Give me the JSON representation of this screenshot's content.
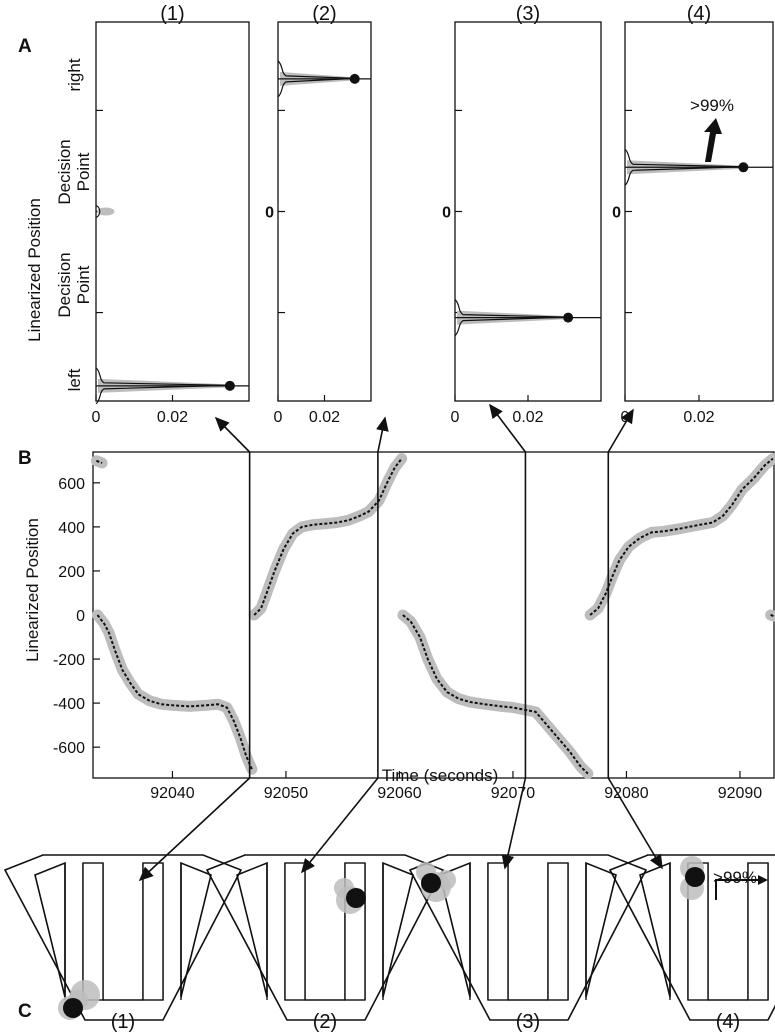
{
  "panel_letters": {
    "a": "A",
    "b": "B",
    "c": "C"
  },
  "chart_data": [
    {
      "type": "line",
      "panel": "A",
      "subplots": [
        {
          "title": "(1)",
          "xticks": [
            "0",
            "0.02"
          ],
          "yticks": [],
          "peak_position": -690,
          "peak_value": 0.035,
          "secondary_bump": {
            "position": 0,
            "value": 0.003
          }
        },
        {
          "title": "(2)",
          "xticks": [
            "0",
            "0.02"
          ],
          "yticks": [
            "0"
          ],
          "peak_position": 525,
          "peak_value": 0.033
        },
        {
          "title": "(3)",
          "xticks": [
            "0",
            "0.02"
          ],
          "yticks": [
            "0"
          ],
          "peak_position": -420,
          "peak_value": 0.031
        },
        {
          "title": "(4)",
          "xticks": [
            "0",
            "0.02"
          ],
          "yticks": [
            "0"
          ],
          "peak_position": 175,
          "peak_value": 0.032,
          "annotation": ">99%"
        }
      ],
      "ylabel": "Linearized Position",
      "ytick_labels": [
        "right",
        "Decision\nPoint",
        "Decision\nPoint",
        "left"
      ],
      "xlim": [
        0,
        0.04
      ],
      "ylim": [
        -750,
        750
      ]
    },
    {
      "type": "scatter",
      "panel": "B",
      "xlabel": "Time (seconds)",
      "ylabel": "Linearized Position",
      "xticks": [
        92040,
        92050,
        92060,
        92070,
        92080,
        92090
      ],
      "yticks": [
        600,
        400,
        200,
        0,
        -200,
        -400,
        -600
      ],
      "xlim": [
        92033,
        92093
      ],
      "ylim": [
        -740,
        740
      ],
      "markers_at_time": [
        92046.8,
        92058.1,
        92071.1,
        92078.4
      ],
      "segments": [
        {
          "name": "",
          "points": [
            [
              92033.3,
              700
            ],
            [
              92033.8,
              690
            ]
          ]
        },
        {
          "points": [
            [
              92033.4,
              0
            ],
            [
              92034.0,
              -40
            ],
            [
              92034.4,
              -80
            ],
            [
              92035.0,
              -170
            ],
            [
              92035.6,
              -250
            ],
            [
              92036.3,
              -310
            ],
            [
              92037.0,
              -360
            ],
            [
              92038.0,
              -390
            ],
            [
              92039.0,
              -405
            ],
            [
              92040.0,
              -410
            ],
            [
              92041.5,
              -415
            ],
            [
              92043.0,
              -410
            ],
            [
              92044.0,
              -405
            ],
            [
              92044.8,
              -420
            ],
            [
              92045.4,
              -480
            ],
            [
              92046.0,
              -560
            ],
            [
              92046.5,
              -640
            ],
            [
              92047.0,
              -700
            ]
          ]
        },
        {
          "points": [
            [
              92047.2,
              0
            ],
            [
              92047.8,
              30
            ],
            [
              92048.3,
              100
            ],
            [
              92049.0,
              200
            ],
            [
              92049.8,
              300
            ],
            [
              92050.6,
              370
            ],
            [
              92051.4,
              400
            ],
            [
              92052.4,
              410
            ],
            [
              92053.5,
              415
            ],
            [
              92054.5,
              420
            ],
            [
              92055.5,
              430
            ],
            [
              92056.5,
              450
            ],
            [
              92057.3,
              470
            ],
            [
              92058.2,
              520
            ],
            [
              92059.0,
              610
            ],
            [
              92059.6,
              670
            ],
            [
              92060.2,
              710
            ]
          ]
        },
        {
          "points": [
            [
              92060.3,
              0
            ],
            [
              92061.0,
              -30
            ],
            [
              92061.8,
              -100
            ],
            [
              92062.5,
              -200
            ],
            [
              92063.3,
              -290
            ],
            [
              92064.2,
              -350
            ],
            [
              92065.2,
              -380
            ],
            [
              92066.2,
              -395
            ],
            [
              92067.5,
              -405
            ],
            [
              92069.0,
              -415
            ],
            [
              92070.0,
              -420
            ],
            [
              92071.0,
              -430
            ],
            [
              92072.0,
              -440
            ],
            [
              92073.0,
              -500
            ],
            [
              92074.0,
              -560
            ],
            [
              92075.0,
              -620
            ],
            [
              92076.0,
              -690
            ],
            [
              92076.6,
              -720
            ]
          ]
        },
        {
          "points": [
            [
              92076.8,
              0
            ],
            [
              92077.5,
              30
            ],
            [
              92078.2,
              100
            ],
            [
              92078.8,
              180
            ],
            [
              92079.4,
              250
            ],
            [
              92080.2,
              310
            ],
            [
              92081.2,
              350
            ],
            [
              92082.2,
              375
            ],
            [
              92083.3,
              380
            ],
            [
              92084.5,
              390
            ],
            [
              92085.5,
              400
            ],
            [
              92086.5,
              410
            ],
            [
              92087.6,
              420
            ],
            [
              92088.5,
              450
            ],
            [
              92089.3,
              500
            ],
            [
              92090.2,
              570
            ],
            [
              92091.2,
              620
            ],
            [
              92092.2,
              680
            ],
            [
              92092.9,
              710
            ]
          ]
        },
        {
          "points": [
            [
              92092.7,
              0
            ],
            [
              92093.0,
              -5
            ]
          ]
        }
      ]
    },
    {
      "type": "other",
      "panel": "C",
      "subplots": [
        {
          "title": "(1)",
          "location": "left arm, bottom"
        },
        {
          "title": "(2)",
          "location": "right arm, middle"
        },
        {
          "title": "(3)",
          "location": "left arm, top"
        },
        {
          "title": "(4)",
          "location": "center arm, upper",
          "annotation": ">99%"
        }
      ]
    }
  ],
  "colors": {
    "trace": "#111111",
    "band": "#bdbdbd",
    "frame": "#111111"
  }
}
